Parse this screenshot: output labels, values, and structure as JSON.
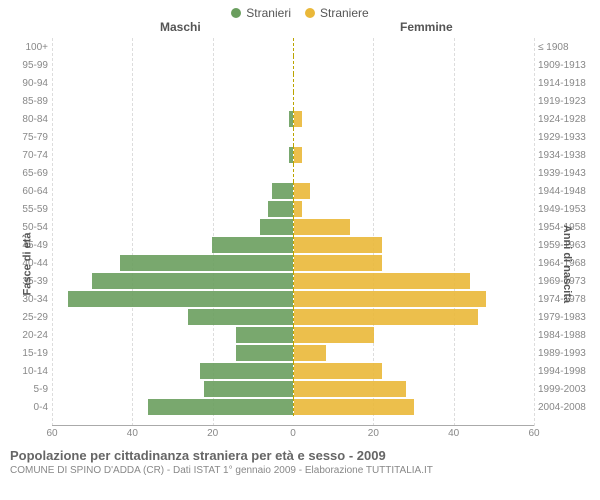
{
  "legend": {
    "male": {
      "label": "Stranieri",
      "color": "#6a9e5e"
    },
    "female": {
      "label": "Straniere",
      "color": "#eab839"
    }
  },
  "headers": {
    "male": "Maschi",
    "female": "Femmine"
  },
  "axis_titles": {
    "left": "Fasce di età",
    "right": "Anni di nascita"
  },
  "x_axis": {
    "max": 60,
    "ticks_left": [
      60,
      40,
      20,
      0
    ],
    "ticks_right": [
      20,
      40,
      60
    ]
  },
  "rows": [
    {
      "age": "100+",
      "year": "≤ 1908",
      "m": 0,
      "f": 0
    },
    {
      "age": "95-99",
      "year": "1909-1913",
      "m": 0,
      "f": 0
    },
    {
      "age": "90-94",
      "year": "1914-1918",
      "m": 0,
      "f": 0
    },
    {
      "age": "85-89",
      "year": "1919-1923",
      "m": 0,
      "f": 0
    },
    {
      "age": "80-84",
      "year": "1924-1928",
      "m": 1,
      "f": 2
    },
    {
      "age": "75-79",
      "year": "1929-1933",
      "m": 0,
      "f": 0
    },
    {
      "age": "70-74",
      "year": "1934-1938",
      "m": 1,
      "f": 2
    },
    {
      "age": "65-69",
      "year": "1939-1943",
      "m": 0,
      "f": 0
    },
    {
      "age": "60-64",
      "year": "1944-1948",
      "m": 5,
      "f": 4
    },
    {
      "age": "55-59",
      "year": "1949-1953",
      "m": 6,
      "f": 2
    },
    {
      "age": "50-54",
      "year": "1954-1958",
      "m": 8,
      "f": 14
    },
    {
      "age": "45-49",
      "year": "1959-1963",
      "m": 20,
      "f": 22
    },
    {
      "age": "40-44",
      "year": "1964-1968",
      "m": 43,
      "f": 22
    },
    {
      "age": "35-39",
      "year": "1969-1973",
      "m": 50,
      "f": 44
    },
    {
      "age": "30-34",
      "year": "1974-1978",
      "m": 56,
      "f": 48
    },
    {
      "age": "25-29",
      "year": "1979-1983",
      "m": 26,
      "f": 46
    },
    {
      "age": "20-24",
      "year": "1984-1988",
      "m": 14,
      "f": 20
    },
    {
      "age": "15-19",
      "year": "1989-1993",
      "m": 14,
      "f": 8
    },
    {
      "age": "10-14",
      "year": "1994-1998",
      "m": 23,
      "f": 22
    },
    {
      "age": "5-9",
      "year": "1999-2003",
      "m": 22,
      "f": 28
    },
    {
      "age": "0-4",
      "year": "2004-2008",
      "m": 36,
      "f": 30
    }
  ],
  "caption": {
    "title": "Popolazione per cittadinanza straniera per età e sesso - 2009",
    "subtitle": "COMUNE DI SPINO D'ADDA (CR) - Dati ISTAT 1° gennaio 2009 - Elaborazione TUTTITALIA.IT"
  },
  "colors": {
    "background": "#ffffff",
    "grid": "#dddddd",
    "center": "#bba400",
    "text_muted": "#888888"
  }
}
